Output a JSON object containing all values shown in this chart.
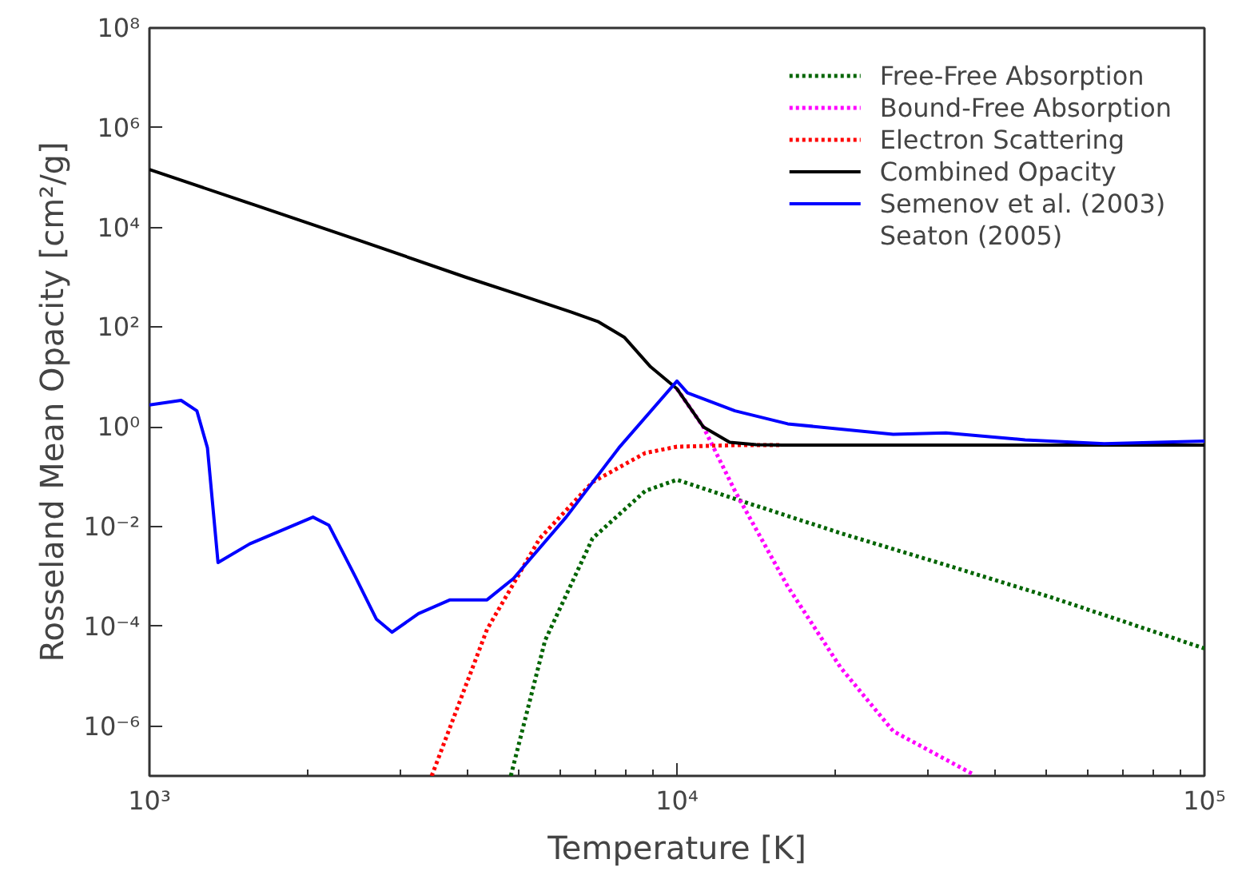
{
  "chart_data": {
    "type": "line",
    "xlabel": "Temperature [K]",
    "ylabel": "Rosseland Mean Opacity [cm²/g]",
    "log": "xy",
    "grid": false,
    "legend": "top right",
    "xlim": [
      1000,
      100000
    ],
    "ylim": [
      1e-07,
      100000000.0
    ],
    "xticks": [
      {
        "value": 1000,
        "label": "10³"
      },
      {
        "value": 2000,
        "label": null
      },
      {
        "value": 3000,
        "label": null
      },
      {
        "value": 4000,
        "label": null
      },
      {
        "value": 5000,
        "label": null
      },
      {
        "value": 6000,
        "label": null
      },
      {
        "value": 7000,
        "label": null
      },
      {
        "value": 8000,
        "label": null
      },
      {
        "value": 9000,
        "label": null
      },
      {
        "value": 10000,
        "label": "10⁴"
      },
      {
        "value": 20000,
        "label": null
      },
      {
        "value": 30000,
        "label": null
      },
      {
        "value": 40000,
        "label": null
      },
      {
        "value": 50000,
        "label": null
      },
      {
        "value": 60000,
        "label": null
      },
      {
        "value": 70000,
        "label": null
      },
      {
        "value": 80000,
        "label": null
      },
      {
        "value": 90000,
        "label": null
      },
      {
        "value": 100000,
        "label": "10⁵"
      }
    ],
    "yticks": [
      {
        "value": 1e-06,
        "label": "10⁻⁶"
      },
      {
        "value": 0.0001,
        "label": "10⁻⁴"
      },
      {
        "value": 0.01,
        "label": "10⁻²"
      },
      {
        "value": 1,
        "label": "10⁰"
      },
      {
        "value": 100,
        "label": "10²"
      },
      {
        "value": 10000,
        "label": "10⁴"
      },
      {
        "value": 1000000,
        "label": "10⁶"
      },
      {
        "value": 100000000,
        "label": "10⁸"
      }
    ],
    "series": [
      {
        "name": "Free-Free Absorption",
        "color": "#006400",
        "line_style": "dotted",
        "x": [
          4842,
          5623,
          6918,
          8710,
          10000,
          12880,
          20420,
          32360,
          51290,
          100000
        ],
        "values": [
          1e-07,
          5.2e-05,
          0.0058,
          0.052,
          0.087,
          0.036,
          0.0074,
          0.0017,
          0.00038,
          3.6e-05
        ]
      },
      {
        "name": "Bound-Free Absorption",
        "color": "#ff00ff",
        "line_style": "dotted",
        "x": [
          10000,
          11220,
          12880,
          16220,
          20420,
          25700,
          36310
        ],
        "values": [
          5.8,
          1.0,
          0.052,
          0.00063,
          1.5e-05,
          7.9e-07,
          1.1e-07
        ]
      },
      {
        "name": "Electron Scattering",
        "color": "#ff0000",
        "line_style": "dotted",
        "x": [
          3428,
          4365,
          5495,
          6918,
          8710,
          10000,
          12880,
          15850
        ],
        "values": [
          1e-07,
          8.7e-05,
          0.0058,
          0.078,
          0.3,
          0.4,
          0.43,
          0.43
        ]
      },
      {
        "name": "Combined Opacity",
        "color": "#000000",
        "line_style": "solid",
        "x": [
          1000,
          1585,
          2512,
          3981,
          5012,
          6310,
          7079,
          7943,
          8913,
          10000,
          11220,
          12590,
          14130,
          15850,
          100000
        ],
        "values": [
          145000.0,
          28000.0,
          5400,
          1000,
          450,
          200,
          130,
          63,
          16,
          5.8,
          1.0,
          0.49,
          0.44,
          0.43,
          0.43
        ]
      },
      {
        "name": "Semenov et al. (2003)",
        "color": "#0000ff",
        "line_style": "solid",
        "x": [
          1000,
          1148,
          1230,
          1288,
          1349,
          1549,
          2042,
          2188,
          2455,
          2692,
          2884,
          3236,
          3715,
          4365,
          4898,
          6166,
          7762,
          10000,
          10470,
          12880,
          16220,
          25700,
          32360,
          45710,
          64570,
          100000
        ],
        "values": [
          2.75,
          3.4,
          2.1,
          0.38,
          0.0019,
          0.0045,
          0.0155,
          0.0107,
          0.001,
          0.00014,
          7.6e-05,
          0.00018,
          0.00034,
          0.00034,
          0.00091,
          0.0155,
          0.38,
          8.3,
          4.8,
          2.1,
          1.15,
          0.71,
          0.76,
          0.55,
          0.46,
          0.52
        ]
      }
    ],
    "annotations": [
      "Seaton (2005)"
    ]
  }
}
